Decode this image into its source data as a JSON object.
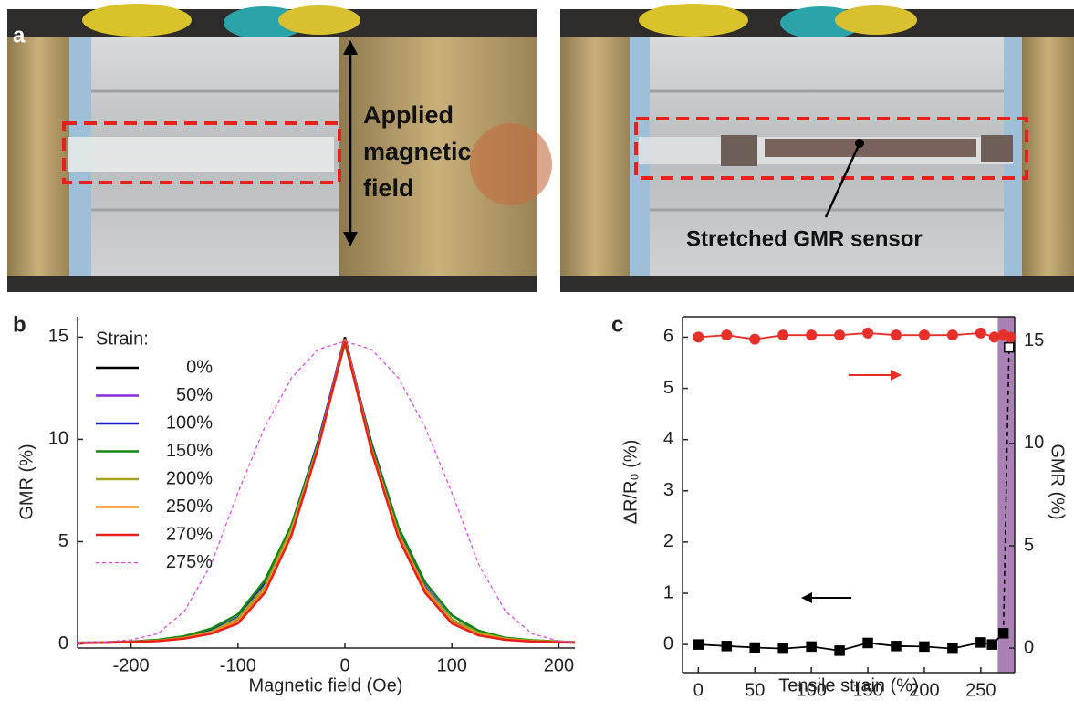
{
  "panel_labels": [
    "a",
    "b",
    "c"
  ],
  "photo_annotations": {
    "applied_field": [
      "Applied",
      "magnetic",
      "field"
    ],
    "stretched_sensor": "Stretched GMR sensor"
  },
  "chart_data": [
    {
      "type": "line",
      "ylabel": "GMR (%)",
      "xlabel": "Magnetic field (Oe)",
      "legend_title": "Strain:",
      "legend": "top-left",
      "xlim": [
        -250,
        215
      ],
      "xticks": [
        -200,
        -100,
        0,
        100,
        200
      ],
      "ylim": [
        -0.2,
        16
      ],
      "yticks": [
        0,
        5,
        10,
        15
      ],
      "frame": false,
      "x": [
        -250,
        -225,
        -200,
        -175,
        -150,
        -125,
        -100,
        -75,
        -50,
        -25,
        0,
        25,
        50,
        75,
        100,
        125,
        150,
        175,
        200,
        215
      ],
      "series": [
        {
          "name": "0%",
          "color": "#000000",
          "values": [
            0.05,
            0.07,
            0.1,
            0.15,
            0.3,
            0.6,
            1.2,
            2.8,
            5.6,
            9.8,
            15.0,
            9.6,
            5.4,
            2.7,
            1.1,
            0.5,
            0.25,
            0.15,
            0.1,
            0.08
          ]
        },
        {
          "name": "50%",
          "color": "#8a2be2",
          "values": [
            0.05,
            0.07,
            0.1,
            0.15,
            0.3,
            0.6,
            1.2,
            2.9,
            5.7,
            9.9,
            14.9,
            9.7,
            5.5,
            2.8,
            1.2,
            0.5,
            0.25,
            0.15,
            0.1,
            0.08
          ]
        },
        {
          "name": "100%",
          "color": "#1a1acc",
          "values": [
            0.05,
            0.07,
            0.1,
            0.16,
            0.32,
            0.65,
            1.3,
            3.0,
            5.8,
            9.9,
            14.8,
            9.8,
            5.7,
            3.0,
            1.4,
            0.6,
            0.28,
            0.16,
            0.1,
            0.08
          ]
        },
        {
          "name": "150%",
          "color": "#118811",
          "values": [
            0.06,
            0.08,
            0.12,
            0.2,
            0.38,
            0.75,
            1.45,
            3.1,
            5.8,
            9.8,
            14.7,
            9.7,
            5.7,
            3.0,
            1.4,
            0.65,
            0.3,
            0.18,
            0.12,
            0.09
          ]
        },
        {
          "name": "200%",
          "color": "#a5a520",
          "values": [
            0.05,
            0.07,
            0.1,
            0.16,
            0.3,
            0.6,
            1.25,
            2.8,
            5.6,
            9.7,
            14.8,
            9.5,
            5.4,
            2.7,
            1.2,
            0.55,
            0.26,
            0.15,
            0.1,
            0.08
          ]
        },
        {
          "name": "250%",
          "color": "#ff8c1a",
          "values": [
            0.05,
            0.07,
            0.1,
            0.15,
            0.28,
            0.55,
            1.1,
            2.6,
            5.4,
            9.6,
            14.9,
            9.5,
            5.3,
            2.6,
            1.05,
            0.45,
            0.22,
            0.13,
            0.09,
            0.07
          ]
        },
        {
          "name": "270%",
          "color": "#e8201a",
          "values": [
            0.04,
            0.06,
            0.09,
            0.14,
            0.26,
            0.5,
            1.0,
            2.5,
            5.3,
            9.6,
            14.8,
            9.4,
            5.2,
            2.5,
            1.0,
            0.42,
            0.2,
            0.12,
            0.08,
            0.06
          ]
        },
        {
          "name": "275%",
          "color": "#e040e0",
          "dashed": true,
          "values": [
            0.08,
            0.1,
            0.2,
            0.5,
            1.6,
            3.9,
            7.4,
            10.6,
            13.0,
            14.4,
            14.8,
            14.4,
            13.0,
            10.6,
            7.4,
            3.9,
            1.6,
            0.5,
            0.15,
            0.08
          ]
        }
      ]
    },
    {
      "type": "scatter-line",
      "ylabel": "ΔR/R₀ (%)",
      "y2label": "GMR (%)",
      "xlabel": "Tensile strain (%)",
      "xlim": [
        -14,
        280
      ],
      "xticks": [
        0,
        50,
        100,
        150,
        200,
        250
      ],
      "ylim": [
        -0.55,
        6.4
      ],
      "yticks": [
        0,
        1,
        2,
        3,
        4,
        5,
        6
      ],
      "y2lim": [
        -1.2,
        16.2
      ],
      "y2ticks": [
        0,
        5,
        10,
        15
      ],
      "frame": true,
      "shade": {
        "xlim": [
          265,
          280
        ],
        "color": "#a981b5"
      },
      "series": [
        {
          "color": "#000000",
          "marker": "square",
          "x": [
            0,
            25,
            50,
            75,
            100,
            125,
            150,
            175,
            200,
            225,
            250,
            260,
            270
          ],
          "values": [
            0.0,
            -0.03,
            -0.06,
            -0.08,
            -0.04,
            -0.12,
            0.03,
            -0.03,
            -0.04,
            -0.08,
            0.04,
            0.0,
            0.22
          ]
        },
        {
          "color": "#000000",
          "marker": "open-square",
          "dashed": true,
          "x": [
            275
          ],
          "values": [
            5.8
          ]
        },
        {
          "color": "#e8302a",
          "marker": "circle",
          "axis": "y2",
          "x": [
            0,
            25,
            50,
            75,
            100,
            125,
            150,
            175,
            200,
            225,
            250,
            262,
            270,
            276
          ],
          "values": [
            15.2,
            15.3,
            15.1,
            15.3,
            15.3,
            15.3,
            15.4,
            15.3,
            15.3,
            15.3,
            15.4,
            15.2,
            15.3,
            15.2
          ]
        }
      ]
    }
  ]
}
